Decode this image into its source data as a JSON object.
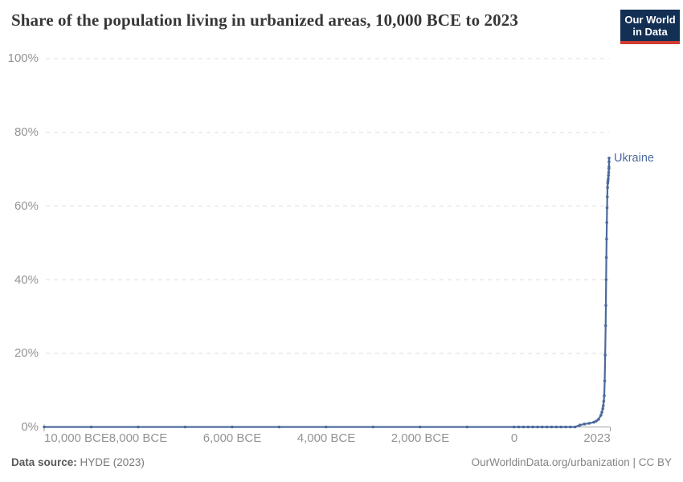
{
  "header": {
    "title": "Share of the population living in urbanized areas, 10,000 BCE to 2023",
    "logo": {
      "line1": "Our World",
      "line2": "in Data"
    }
  },
  "footer": {
    "source_label": "Data source:",
    "source_value": "HYDE (2023)",
    "credit": "OurWorldinData.org/urbanization | CC BY"
  },
  "colors": {
    "line": "#4c6a9c",
    "grid": "#dddddd",
    "axis": "#a3a3a3",
    "axis_text": "#949494",
    "logo_bg": "#132f54",
    "logo_accent": "#cf3c32",
    "entity_label": "#4c6a9c"
  },
  "chart_data": {
    "type": "line",
    "title": "Share of the population living in urbanized areas, 10,000 BCE to 2023",
    "xlabel": "",
    "ylabel": "",
    "xlim": [
      -10000,
      2023
    ],
    "ylim": [
      0,
      100
    ],
    "grid": "dashed-horizontal",
    "legend_position": "end-of-line-label",
    "y_ticks": [
      {
        "value": 0,
        "label": "0%"
      },
      {
        "value": 20,
        "label": "20%"
      },
      {
        "value": 40,
        "label": "40%"
      },
      {
        "value": 60,
        "label": "60%"
      },
      {
        "value": 80,
        "label": "80%"
      },
      {
        "value": 100,
        "label": "100%"
      }
    ],
    "x_ticks": [
      {
        "value": -10000,
        "label": "10,000 BCE"
      },
      {
        "value": -8000,
        "label": "8,000 BCE"
      },
      {
        "value": -6000,
        "label": "6,000 BCE"
      },
      {
        "value": -4000,
        "label": "4,000 BCE"
      },
      {
        "value": -2000,
        "label": "2,000 BCE"
      },
      {
        "value": 0,
        "label": "0"
      },
      {
        "value": 2023,
        "label": "2023"
      }
    ],
    "series": [
      {
        "name": "Ukraine",
        "color": "#4c6a9c",
        "show_markers": true,
        "points": [
          [
            -10000,
            0
          ],
          [
            -9000,
            0
          ],
          [
            -8000,
            0
          ],
          [
            -7000,
            0
          ],
          [
            -6000,
            0
          ],
          [
            -5000,
            0
          ],
          [
            -4000,
            0
          ],
          [
            -3000,
            0
          ],
          [
            -2000,
            0
          ],
          [
            -1000,
            0
          ],
          [
            0,
            0
          ],
          [
            100,
            0
          ],
          [
            200,
            0
          ],
          [
            300,
            0
          ],
          [
            400,
            0
          ],
          [
            500,
            0
          ],
          [
            600,
            0
          ],
          [
            700,
            0
          ],
          [
            800,
            0
          ],
          [
            900,
            0
          ],
          [
            1000,
            0
          ],
          [
            1100,
            0
          ],
          [
            1200,
            0
          ],
          [
            1300,
            0
          ],
          [
            1400,
            0.5
          ],
          [
            1500,
            0.8
          ],
          [
            1600,
            1.0
          ],
          [
            1700,
            1.3
          ],
          [
            1750,
            1.6
          ],
          [
            1800,
            2.1
          ],
          [
            1850,
            3.2
          ],
          [
            1870,
            4.0
          ],
          [
            1890,
            5.0
          ],
          [
            1900,
            5.8
          ],
          [
            1910,
            7.0
          ],
          [
            1920,
            8.5
          ],
          [
            1930,
            12.5
          ],
          [
            1940,
            19.5
          ],
          [
            1950,
            27.5
          ],
          [
            1955,
            33.0
          ],
          [
            1960,
            40.0
          ],
          [
            1965,
            46.0
          ],
          [
            1970,
            51.0
          ],
          [
            1975,
            55.5
          ],
          [
            1980,
            59.5
          ],
          [
            1985,
            62.5
          ],
          [
            1990,
            65.0
          ],
          [
            1995,
            66.2
          ],
          [
            2000,
            66.8
          ],
          [
            2005,
            67.4
          ],
          [
            2010,
            68.3
          ],
          [
            2015,
            69.1
          ],
          [
            2020,
            70.1
          ],
          [
            2021,
            70.6
          ],
          [
            2022,
            72.0
          ],
          [
            2023,
            73.0
          ]
        ]
      }
    ]
  }
}
